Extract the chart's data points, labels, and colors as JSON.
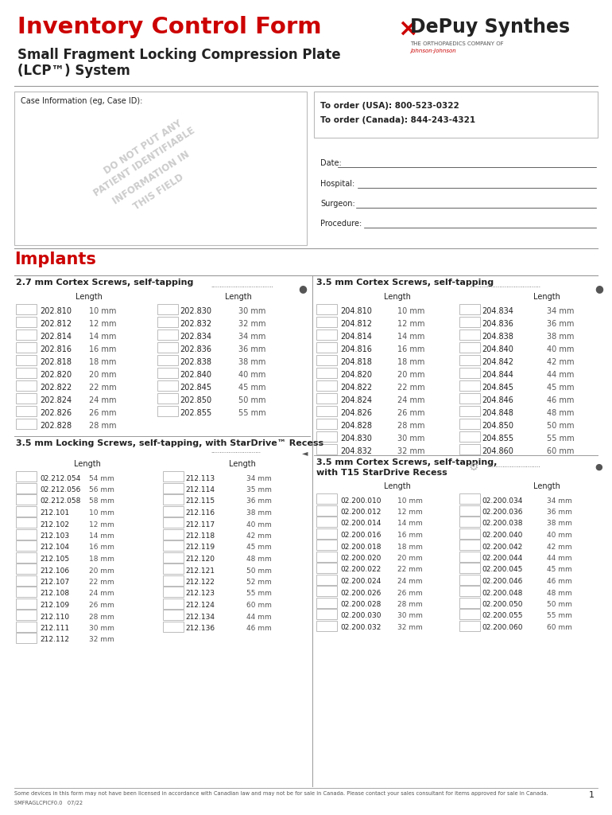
{
  "title1": "Inventory Control Form",
  "title2_line1": "Small Fragment Locking Compression Plate",
  "title2_line2": "(LCP™) System",
  "brand_text": "DePuy Synthes",
  "brand_sub": "THE ORTHOPAEDICS COMPANY OF",
  "brand_sub2": "Johnson·Johnson",
  "case_info_label": "Case Information (eg, Case ID):",
  "watermark_lines": [
    "DO NOT PUT ANY",
    "PATIENT IDENTIFIABLE",
    "INFORMATION IN",
    "THIS FIELD"
  ],
  "order_usa": "To order (USA): 800-523-0322",
  "order_canada": "To order (Canada): 844-243-4321",
  "fields": [
    "Date:",
    "Hospital:",
    "Surgeon:",
    "Procedure:"
  ],
  "implants_title": "Implants",
  "section1_title": "2.7 mm Cortex Screws, self-tapping",
  "section1_col1": [
    [
      "202.810",
      "10 mm"
    ],
    [
      "202.812",
      "12 mm"
    ],
    [
      "202.814",
      "14 mm"
    ],
    [
      "202.816",
      "16 mm"
    ],
    [
      "202.818",
      "18 mm"
    ],
    [
      "202.820",
      "20 mm"
    ],
    [
      "202.822",
      "22 mm"
    ],
    [
      "202.824",
      "24 mm"
    ],
    [
      "202.826",
      "26 mm"
    ],
    [
      "202.828",
      "28 mm"
    ]
  ],
  "section1_col2": [
    [
      "202.830",
      "30 mm"
    ],
    [
      "202.832",
      "32 mm"
    ],
    [
      "202.834",
      "34 mm"
    ],
    [
      "202.836",
      "36 mm"
    ],
    [
      "202.838",
      "38 mm"
    ],
    [
      "202.840",
      "40 mm"
    ],
    [
      "202.845",
      "45 mm"
    ],
    [
      "202.850",
      "50 mm"
    ],
    [
      "202.855",
      "55 mm"
    ]
  ],
  "section2_title": "3.5 mm Cortex Screws, self-tapping",
  "section2_col1": [
    [
      "204.810",
      "10 mm"
    ],
    [
      "204.812",
      "12 mm"
    ],
    [
      "204.814",
      "14 mm"
    ],
    [
      "204.816",
      "16 mm"
    ],
    [
      "204.818",
      "18 mm"
    ],
    [
      "204.820",
      "20 mm"
    ],
    [
      "204.822",
      "22 mm"
    ],
    [
      "204.824",
      "24 mm"
    ],
    [
      "204.826",
      "26 mm"
    ],
    [
      "204.828",
      "28 mm"
    ],
    [
      "204.830",
      "30 mm"
    ],
    [
      "204.832",
      "32 mm"
    ]
  ],
  "section2_col2": [
    [
      "204.834",
      "34 mm"
    ],
    [
      "204.836",
      "36 mm"
    ],
    [
      "204.838",
      "38 mm"
    ],
    [
      "204.840",
      "40 mm"
    ],
    [
      "204.842",
      "42 mm"
    ],
    [
      "204.844",
      "44 mm"
    ],
    [
      "204.845",
      "45 mm"
    ],
    [
      "204.846",
      "46 mm"
    ],
    [
      "204.848",
      "48 mm"
    ],
    [
      "204.850",
      "50 mm"
    ],
    [
      "204.855",
      "55 mm"
    ],
    [
      "204.860",
      "60 mm"
    ]
  ],
  "section3_title": "3.5 mm Locking Screws, self-tapping, with StarDrive™ Recess",
  "section3_col1": [
    [
      "02.212.054",
      "54 mm"
    ],
    [
      "02.212.056",
      "56 mm"
    ],
    [
      "02.212.058",
      "58 mm"
    ],
    [
      "212.101",
      "10 mm"
    ],
    [
      "212.102",
      "12 mm"
    ],
    [
      "212.103",
      "14 mm"
    ],
    [
      "212.104",
      "16 mm"
    ],
    [
      "212.105",
      "18 mm"
    ],
    [
      "212.106",
      "20 mm"
    ],
    [
      "212.107",
      "22 mm"
    ],
    [
      "212.108",
      "24 mm"
    ],
    [
      "212.109",
      "26 mm"
    ],
    [
      "212.110",
      "28 mm"
    ],
    [
      "212.111",
      "30 mm"
    ],
    [
      "212.112",
      "32 mm"
    ]
  ],
  "section3_col2": [
    [
      "212.113",
      "34 mm"
    ],
    [
      "212.114",
      "35 mm"
    ],
    [
      "212.115",
      "36 mm"
    ],
    [
      "212.116",
      "38 mm"
    ],
    [
      "212.117",
      "40 mm"
    ],
    [
      "212.118",
      "42 mm"
    ],
    [
      "212.119",
      "45 mm"
    ],
    [
      "212.120",
      "48 mm"
    ],
    [
      "212.121",
      "50 mm"
    ],
    [
      "212.122",
      "52 mm"
    ],
    [
      "212.123",
      "55 mm"
    ],
    [
      "212.124",
      "60 mm"
    ],
    [
      "212.134",
      "44 mm"
    ],
    [
      "212.136",
      "46 mm"
    ]
  ],
  "section4_title": "3.5 mm Cortex Screws, self-tapping,",
  "section4_title2": "with T15 StarDrive Recess",
  "section4_col1": [
    [
      "02.200.010",
      "10 mm"
    ],
    [
      "02.200.012",
      "12 mm"
    ],
    [
      "02.200.014",
      "14 mm"
    ],
    [
      "02.200.016",
      "16 mm"
    ],
    [
      "02.200.018",
      "18 mm"
    ],
    [
      "02.200.020",
      "20 mm"
    ],
    [
      "02.200.022",
      "22 mm"
    ],
    [
      "02.200.024",
      "24 mm"
    ],
    [
      "02.200.026",
      "26 mm"
    ],
    [
      "02.200.028",
      "28 mm"
    ],
    [
      "02.200.030",
      "30 mm"
    ],
    [
      "02.200.032",
      "32 mm"
    ]
  ],
  "section4_col2": [
    [
      "02.200.034",
      "34 mm"
    ],
    [
      "02.200.036",
      "36 mm"
    ],
    [
      "02.200.038",
      "38 mm"
    ],
    [
      "02.200.040",
      "40 mm"
    ],
    [
      "02.200.042",
      "42 mm"
    ],
    [
      "02.200.044",
      "44 mm"
    ],
    [
      "02.200.045",
      "45 mm"
    ],
    [
      "02.200.046",
      "46 mm"
    ],
    [
      "02.200.048",
      "48 mm"
    ],
    [
      "02.200.050",
      "50 mm"
    ],
    [
      "02.200.055",
      "55 mm"
    ],
    [
      "02.200.060",
      "60 mm"
    ]
  ],
  "footer": "Some devices in this form may not have been licensed in accordance with Canadian law and may not be for sale in Canada. Please contact your sales consultant for items approved for sale in Canada.",
  "footer2": "SMFRAGLCPICF0.0   07/22",
  "page_num": "1",
  "red_color": "#cc0000",
  "dark_gray": "#222222",
  "mid_gray": "#555555",
  "light_gray": "#999999",
  "box_gray": "#bbbbbb",
  "watermark_color": "#cccccc"
}
